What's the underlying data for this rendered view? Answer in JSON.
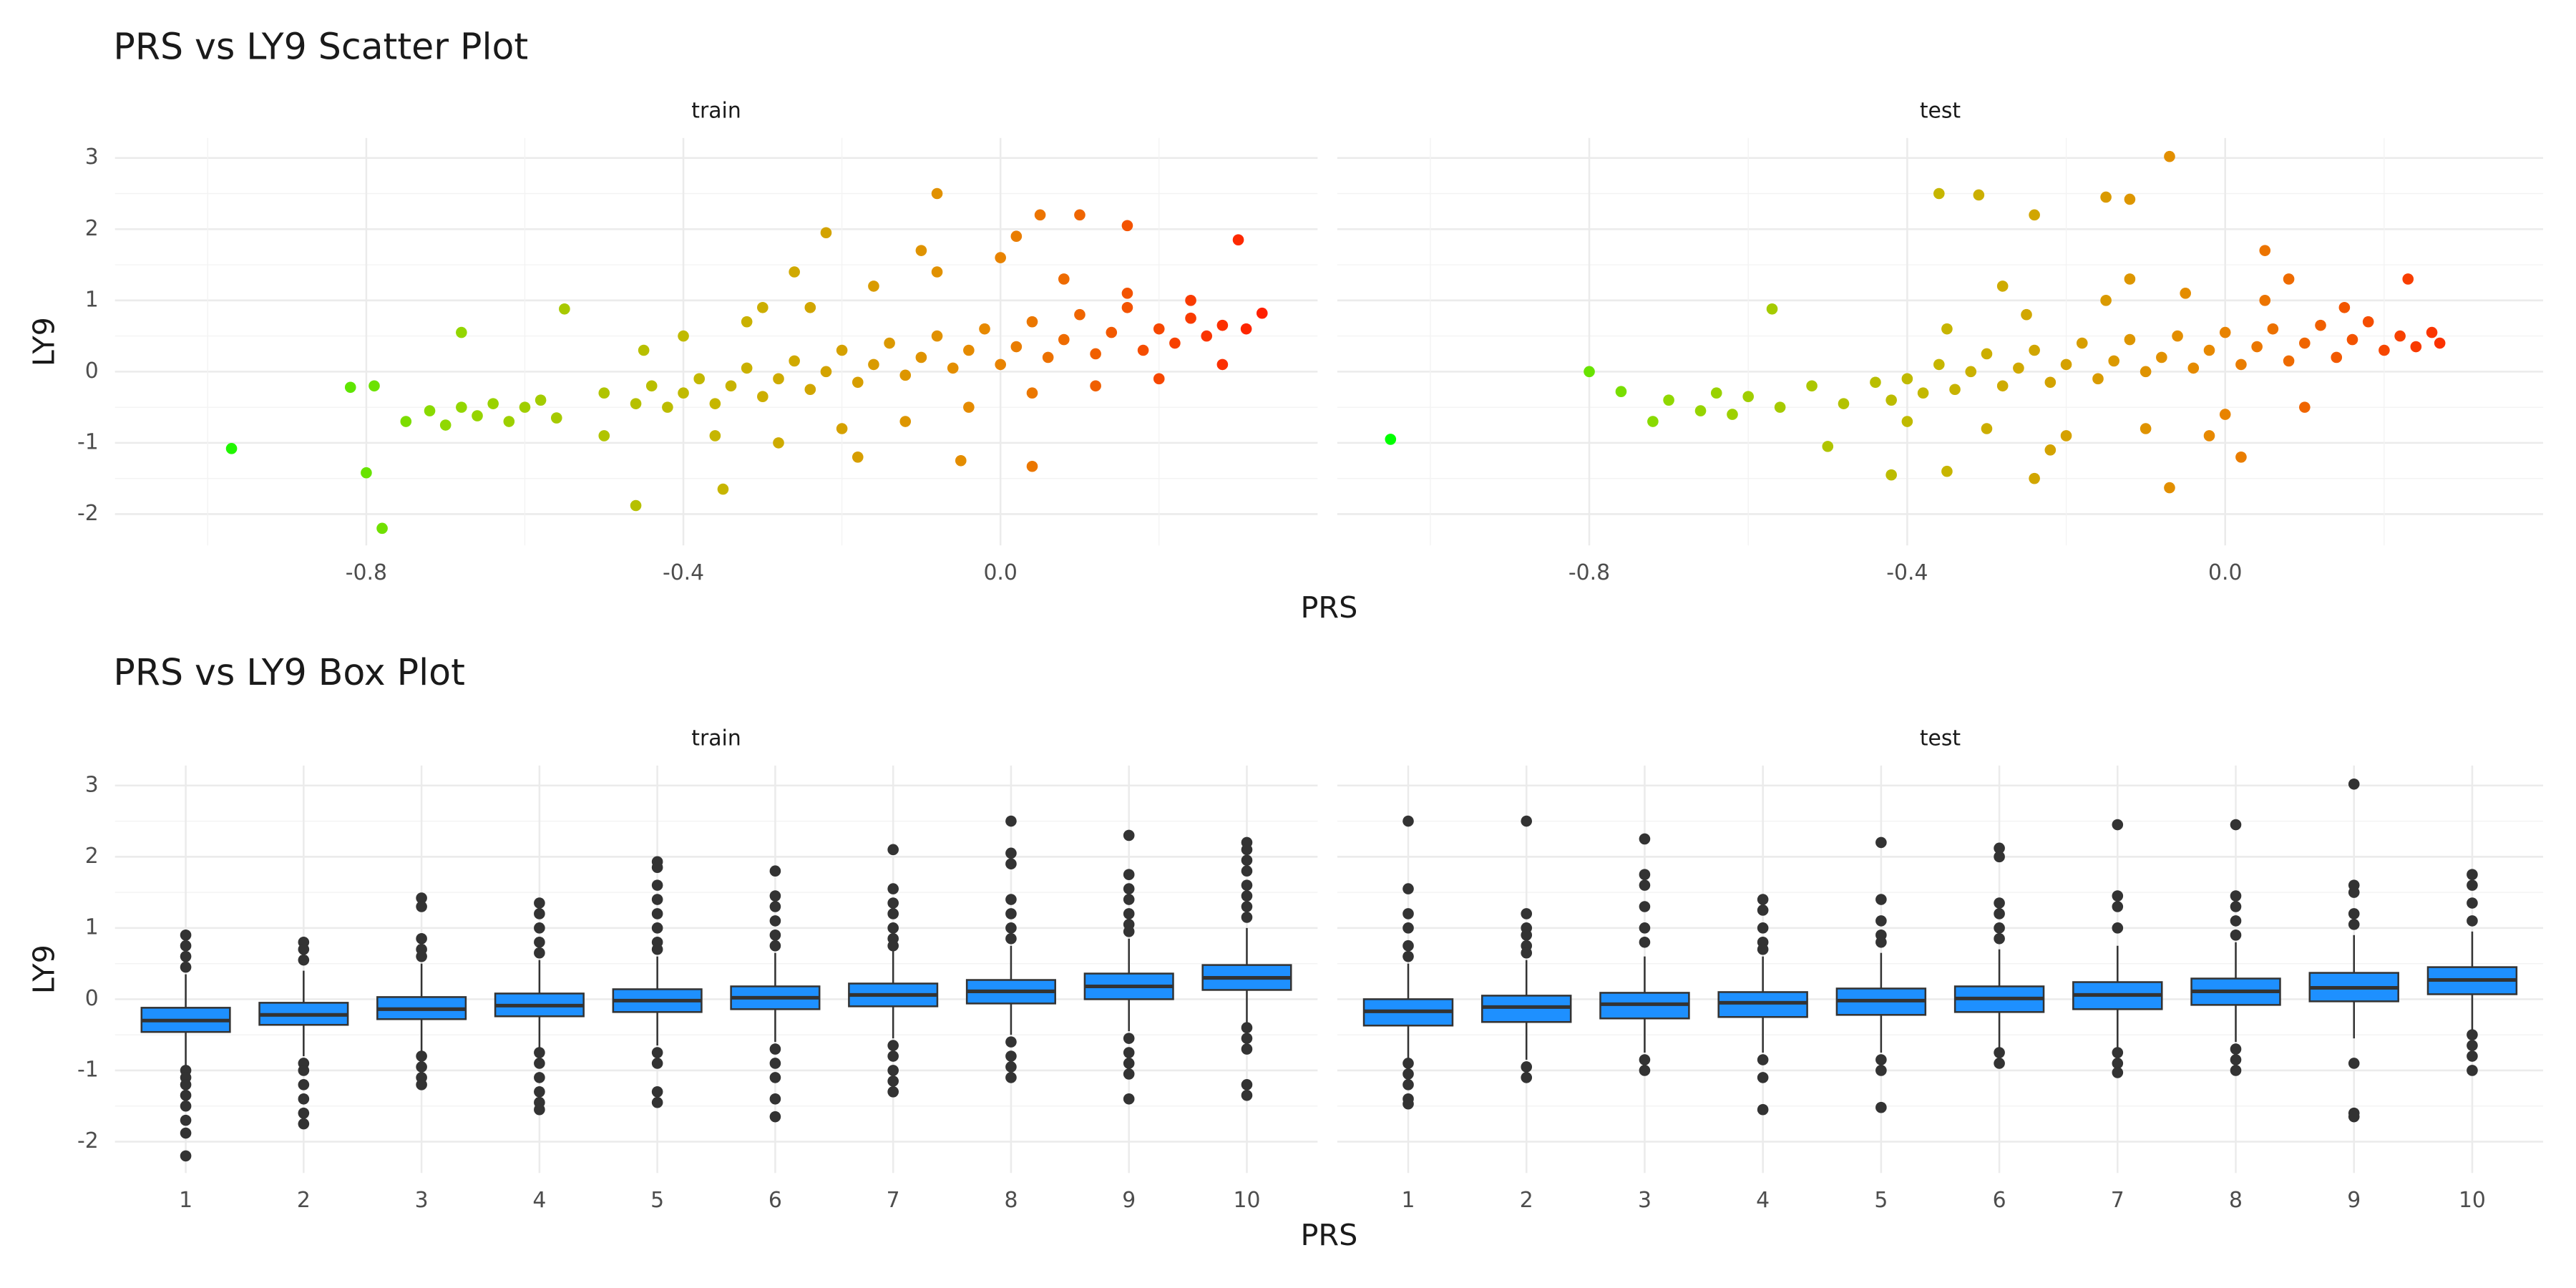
{
  "chart_data": [
    {
      "type": "scatter",
      "title": "PRS vs LY9 Scatter Plot",
      "x_label": "PRS",
      "y_label": "LY9",
      "xlim": [
        -1.117,
        0.4
      ],
      "xticks": [
        -0.8,
        -0.4,
        {
          "value": 0,
          "label": "0.0"
        }
      ],
      "minor_xticks": [
        -1.0,
        -0.6,
        -0.2,
        0.2
      ],
      "ylim": [
        -2.44,
        3.28
      ],
      "yticks": [
        -2,
        -1,
        0,
        1,
        2,
        3
      ],
      "minor_yticks": [
        -1.5,
        -0.5,
        0.5,
        1.5,
        2.5
      ],
      "grid": true,
      "colors": [
        "#00ff00",
        "#8fd800",
        "#c6b600",
        "#e78800",
        "#ff2000"
      ],
      "facets": [
        {
          "name": "train",
          "x": [
            -0.75,
            -0.72,
            -0.7,
            -0.68,
            -0.66,
            -0.64,
            -0.62,
            -0.6,
            -0.58,
            -0.56,
            -0.5,
            -0.46,
            -0.44,
            -0.42,
            -0.4,
            -0.38,
            -0.36,
            -0.34,
            -0.32,
            -0.3,
            -0.28,
            -0.26,
            -0.24,
            -0.22,
            -0.2,
            -0.18,
            -0.16,
            -0.14,
            -0.12,
            -0.1,
            -0.08,
            -0.06,
            -0.04,
            -0.02,
            0,
            0.02,
            0.04,
            0.06,
            0.08,
            0.1,
            0.12,
            0.14,
            0.16,
            0.18,
            0.2,
            0.22,
            0.24,
            0.26,
            0.28,
            -0.4,
            -0.36,
            -0.32,
            -0.28,
            -0.24,
            -0.2,
            -0.16,
            -0.12,
            -0.08,
            -0.04,
            0,
            0.04,
            0.08,
            0.12,
            0.16,
            0.2,
            0.24,
            -0.5,
            -0.45,
            -0.3,
            -0.18,
            -0.1,
            0.02,
            -0.26,
            -0.97,
            -0.82,
            -0.79,
            -0.8,
            -0.78,
            -0.68,
            -0.55,
            -0.46,
            -0.08,
            0.05,
            0.16,
            0.3,
            0.33,
            -0.22,
            0.1,
            -0.35,
            0.04,
            -0.05,
            0.28,
            0.31
          ],
          "y": [
            -0.7,
            -0.55,
            -0.75,
            -0.5,
            -0.62,
            -0.45,
            -0.7,
            -0.5,
            -0.4,
            -0.65,
            -0.3,
            -0.45,
            -0.2,
            -0.5,
            -0.3,
            -0.1,
            -0.45,
            -0.2,
            0.05,
            -0.35,
            -0.1,
            0.15,
            -0.25,
            0,
            0.3,
            -0.15,
            0.1,
            0.4,
            -0.05,
            0.2,
            0.5,
            0.05,
            0.3,
            0.6,
            0.1,
            0.35,
            0.7,
            0.2,
            0.45,
            0.8,
            0.25,
            0.55,
            0.9,
            0.3,
            0.6,
            0.4,
            0.75,
            0.5,
            0.65,
            0.5,
            -0.9,
            0.7,
            -1.0,
            0.9,
            -0.8,
            1.2,
            -0.7,
            1.4,
            -0.5,
            1.6,
            -0.3,
            1.3,
            -0.2,
            1.1,
            -0.1,
            1.0,
            -0.9,
            0.3,
            0.9,
            -1.2,
            1.7,
            1.9,
            1.4,
            -1.08,
            -0.22,
            -0.2,
            -1.42,
            -2.2,
            0.55,
            0.88,
            -1.88,
            2.5,
            2.2,
            2.05,
            1.85,
            0.82,
            1.95,
            2.2,
            -1.65,
            -1.33,
            -1.25,
            0.1,
            0.6
          ]
        },
        {
          "name": "test",
          "x": [
            -0.72,
            -0.7,
            -0.66,
            -0.64,
            -0.62,
            -0.6,
            -0.56,
            -0.52,
            -0.48,
            -0.44,
            -0.42,
            -0.4,
            -0.38,
            -0.36,
            -0.34,
            -0.32,
            -0.3,
            -0.28,
            -0.26,
            -0.24,
            -0.22,
            -0.2,
            -0.18,
            -0.16,
            -0.14,
            -0.12,
            -0.1,
            -0.08,
            -0.06,
            -0.04,
            -0.02,
            0,
            0.02,
            0.04,
            0.06,
            0.08,
            0.1,
            0.12,
            0.14,
            0.16,
            0.18,
            0.2,
            0.22,
            0.24,
            0.26,
            -0.4,
            -0.35,
            -0.3,
            -0.25,
            -0.2,
            -0.15,
            -0.1,
            -0.05,
            0,
            0.05,
            0.1,
            0.15,
            -0.28,
            -0.22,
            -0.12,
            -0.02,
            0.08,
            -1.05,
            -0.8,
            -0.76,
            -0.57,
            -0.36,
            -0.31,
            -0.24,
            -0.15,
            -0.12,
            -0.07,
            0.05,
            0.23,
            0.27,
            -0.35,
            -0.42,
            -0.24,
            -0.07,
            0.02,
            -0.5
          ],
          "y": [
            -0.7,
            -0.4,
            -0.55,
            -0.3,
            -0.6,
            -0.35,
            -0.5,
            -0.2,
            -0.45,
            -0.15,
            -0.4,
            -0.1,
            -0.3,
            0.1,
            -0.25,
            0,
            0.25,
            -0.2,
            0.05,
            0.3,
            -0.15,
            0.1,
            0.4,
            -0.1,
            0.15,
            0.45,
            0,
            0.2,
            0.5,
            0.05,
            0.3,
            0.55,
            0.1,
            0.35,
            0.6,
            0.15,
            0.4,
            0.65,
            0.2,
            0.45,
            0.7,
            0.3,
            0.5,
            0.35,
            0.55,
            -0.7,
            0.6,
            -0.8,
            0.8,
            -0.9,
            1.0,
            -0.8,
            1.1,
            -0.6,
            1.0,
            -0.5,
            0.9,
            1.2,
            -1.1,
            1.3,
            -0.9,
            1.3,
            -0.95,
            0,
            -0.28,
            0.88,
            2.5,
            2.48,
            2.2,
            2.45,
            2.42,
            3.02,
            1.7,
            1.3,
            0.4,
            -1.4,
            -1.45,
            -1.5,
            -1.63,
            -1.2,
            -1.05
          ]
        }
      ]
    },
    {
      "type": "box",
      "title": "PRS vs LY9 Box Plot",
      "x_label": "PRS",
      "y_label": "LY9",
      "categories": [
        "1",
        "2",
        "3",
        "4",
        "5",
        "6",
        "7",
        "8",
        "9",
        "10"
      ],
      "ylim": [
        -2.44,
        3.28
      ],
      "yticks": [
        -2,
        -1,
        0,
        1,
        2,
        3
      ],
      "minor_yticks": [
        -1.5,
        -0.5,
        0.5,
        1.5,
        2.5
      ],
      "grid": true,
      "color": "#1e90ff",
      "facets": [
        {
          "name": "train",
          "q1": [
            -0.46,
            -0.36,
            -0.28,
            -0.24,
            -0.18,
            -0.14,
            -0.1,
            -0.06,
            0,
            0.13
          ],
          "median": [
            -0.3,
            -0.22,
            -0.14,
            -0.09,
            -0.02,
            0.02,
            0.06,
            0.11,
            0.18,
            0.3
          ],
          "q3": [
            -0.12,
            -0.05,
            0.03,
            0.08,
            0.14,
            0.18,
            0.22,
            0.27,
            0.36,
            0.48
          ],
          "whisker_low": [
            -0.95,
            -0.8,
            -0.75,
            -0.7,
            -0.65,
            -0.6,
            -0.55,
            -0.5,
            -0.45,
            -0.35
          ],
          "whisker_high": [
            0.35,
            0.4,
            0.5,
            0.55,
            0.6,
            0.65,
            0.7,
            0.75,
            0.85,
            1.0
          ],
          "outliers": [
            [
              0.9,
              0.75,
              0.6,
              0.45,
              -1.0,
              -1.1,
              -1.2,
              -1.35,
              -1.5,
              -1.7,
              -1.88,
              -2.2
            ],
            [
              0.8,
              0.7,
              0.55,
              -0.9,
              -1.0,
              -1.2,
              -1.4,
              -1.6,
              -1.75
            ],
            [
              1.42,
              1.3,
              0.85,
              0.7,
              0.6,
              -0.8,
              -0.95,
              -1.1,
              -1.2
            ],
            [
              1.35,
              1.2,
              1.0,
              0.8,
              0.65,
              -0.75,
              -0.9,
              -1.1,
              -1.3,
              -1.45,
              -1.55
            ],
            [
              1.93,
              1.85,
              1.6,
              1.4,
              1.2,
              1.0,
              0.8,
              0.7,
              -0.75,
              -0.9,
              -1.3,
              -1.45
            ],
            [
              1.8,
              1.45,
              1.3,
              1.1,
              0.9,
              0.75,
              -0.7,
              -0.9,
              -1.1,
              -1.4,
              -1.65
            ],
            [
              2.1,
              1.55,
              1.35,
              1.2,
              1.0,
              0.85,
              0.75,
              -0.65,
              -0.8,
              -1.0,
              -1.15,
              -1.3
            ],
            [
              2.5,
              2.05,
              1.9,
              1.4,
              1.2,
              1.0,
              0.85,
              -0.6,
              -0.8,
              -0.95,
              -1.1
            ],
            [
              2.3,
              1.75,
              1.55,
              1.4,
              1.2,
              1.05,
              0.95,
              -0.55,
              -0.75,
              -0.9,
              -1.05,
              -1.4
            ],
            [
              2.2,
              2.1,
              1.95,
              1.8,
              1.6,
              1.45,
              1.3,
              1.15,
              -0.4,
              -0.55,
              -0.7,
              -1.2,
              -1.35
            ]
          ]
        },
        {
          "name": "test",
          "q1": [
            -0.37,
            -0.32,
            -0.27,
            -0.25,
            -0.22,
            -0.18,
            -0.14,
            -0.08,
            -0.03,
            0.07
          ],
          "median": [
            -0.17,
            -0.11,
            -0.07,
            -0.05,
            -0.02,
            0.01,
            0.06,
            0.11,
            0.16,
            0.27
          ],
          "q3": [
            0.0,
            0.05,
            0.09,
            0.1,
            0.15,
            0.18,
            0.24,
            0.29,
            0.37,
            0.45
          ],
          "whisker_low": [
            -0.85,
            -0.85,
            -0.75,
            -0.75,
            -0.75,
            -0.7,
            -0.7,
            -0.6,
            -0.55,
            -0.45
          ],
          "whisker_high": [
            0.5,
            0.55,
            0.6,
            0.6,
            0.65,
            0.7,
            0.75,
            0.8,
            0.9,
            0.95
          ],
          "outliers": [
            [
              2.5,
              1.55,
              1.2,
              1.0,
              0.75,
              0.6,
              -0.9,
              -1.05,
              -1.2,
              -1.4,
              -1.47
            ],
            [
              2.5,
              1.2,
              1.0,
              0.9,
              0.75,
              0.65,
              -0.95,
              -1.1
            ],
            [
              2.25,
              1.75,
              1.6,
              1.3,
              1.0,
              0.8,
              -0.85,
              -1.0
            ],
            [
              1.4,
              1.25,
              1.0,
              0.8,
              0.7,
              -0.85,
              -1.1,
              -1.55
            ],
            [
              2.2,
              1.4,
              1.1,
              0.9,
              0.8,
              -0.85,
              -1.0,
              -1.52
            ],
            [
              2.12,
              2.0,
              1.35,
              1.2,
              1.0,
              0.85,
              -0.75,
              -0.9
            ],
            [
              2.45,
              1.45,
              1.3,
              1.0,
              -0.75,
              -0.9,
              -1.03
            ],
            [
              2.45,
              1.45,
              1.3,
              1.1,
              0.9,
              -0.7,
              -0.85,
              -1.0
            ],
            [
              3.02,
              1.6,
              1.5,
              1.2,
              1.05,
              -0.9,
              -1.6,
              -1.65
            ],
            [
              1.75,
              1.6,
              1.35,
              1.1,
              -0.5,
              -0.65,
              -0.8,
              -1.0
            ]
          ]
        }
      ]
    }
  ]
}
